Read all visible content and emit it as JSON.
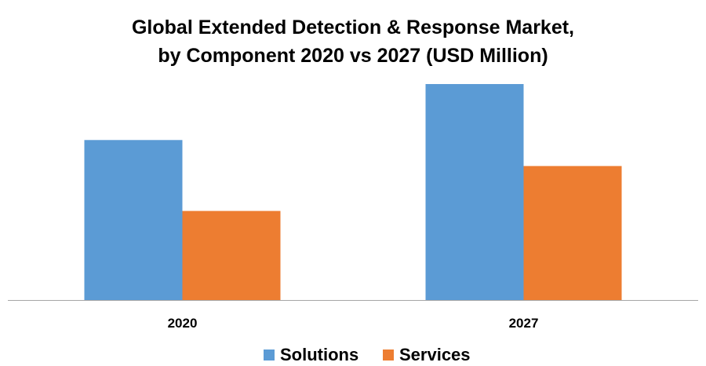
{
  "chart_data": {
    "type": "bar",
    "title_lines": [
      "Global Extended Detection & Response Market,",
      "by Component 2020 vs 2027 (USD Million)"
    ],
    "categories": [
      "2020",
      "2027"
    ],
    "series": [
      {
        "name": "Solutions",
        "color": "#5B9BD5",
        "values": [
          203,
          274
        ]
      },
      {
        "name": "Services",
        "color": "#ED7D31",
        "values": [
          113,
          170
        ]
      }
    ],
    "ylim": [
      0,
      280
    ],
    "xlabel": "",
    "ylabel": "",
    "grid": false,
    "legend_position": "bottom",
    "axis_color": "#A6A6A6"
  }
}
